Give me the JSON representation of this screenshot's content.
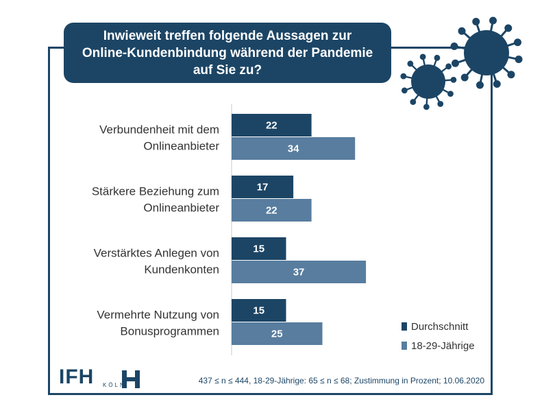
{
  "title": "Inwieweit treffen folgende Aussagen zur\nOnline-Kundenbindung während der Pandemie\nauf Sie zu?",
  "footnote": "437 ≤ n ≤ 444, 18-29-Jährige: 65 ≤ n ≤ 68; Zustimmung in Prozent; 10.06.2020",
  "logo": {
    "text": "IFH",
    "subtext": "KÖLN"
  },
  "colors": {
    "dark_navy": "#1c4565",
    "steel_blue": "#587d9f"
  },
  "icons": [
    "virus-icon-large",
    "virus-icon-small"
  ],
  "chart_data": {
    "type": "bar",
    "orientation": "horizontal",
    "categories": [
      [
        "Verbundenheit mit dem",
        "Onlineanbieter"
      ],
      [
        "Stärkere Beziehung zum",
        "Onlineanbieter"
      ],
      [
        "Verstärktes Anlegen von",
        "Kundenkonten"
      ],
      [
        "Vermehrte Nutzung von",
        "Bonusprogrammen"
      ]
    ],
    "series": [
      {
        "name": "Durchschnitt",
        "color": "#1c4565",
        "values": [
          22,
          17,
          15,
          15
        ]
      },
      {
        "name": "18-29-Jährige",
        "color": "#587d9f",
        "values": [
          34,
          22,
          37,
          25
        ]
      }
    ],
    "data_labels": true,
    "grid": false,
    "legend": "bottom-right"
  }
}
